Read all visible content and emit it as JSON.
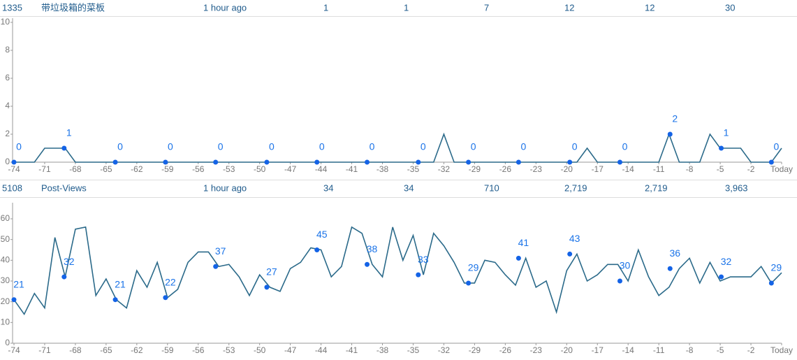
{
  "rows": [
    {
      "id": "1335",
      "name": "带垃圾箱的菜板",
      "updated": "1 hour ago",
      "stats": [
        "1",
        "1",
        "7",
        "12",
        "12",
        "30"
      ]
    },
    {
      "id": "5108",
      "name": "Post-Views",
      "updated": "1 hour ago",
      "stats": [
        "34",
        "34",
        "710",
        "2,719",
        "2,719",
        "3,963"
      ]
    }
  ],
  "chart_data": [
    {
      "type": "line",
      "x": [
        -74,
        -73,
        -72,
        -71,
        -70,
        -69,
        -68,
        -67,
        -66,
        -65,
        -64,
        -63,
        -62,
        -61,
        -60,
        -59,
        -58,
        -57,
        -56,
        -55,
        -54,
        -53,
        -52,
        -51,
        -50,
        -49,
        -48,
        -47,
        -46,
        -45,
        -44,
        -43,
        -42,
        -41,
        -40,
        -39,
        -38,
        -37,
        -36,
        -35,
        -34,
        -33,
        -32,
        -31,
        -30,
        -29,
        -28,
        -27,
        -26,
        -25,
        -24,
        -23,
        -22,
        -21,
        -20,
        -19,
        -18,
        -17,
        -16,
        -15,
        -14,
        -13,
        -12,
        -11,
        -10,
        -9,
        -8,
        -7,
        -6,
        -5,
        -4,
        -3,
        -2,
        -1,
        0,
        1
      ],
      "series": [
        {
          "color": "#2b6a8a",
          "values": [
            0,
            0,
            0,
            1,
            1,
            1,
            0,
            0,
            0,
            0,
            0,
            0,
            0,
            0,
            0,
            0,
            0,
            0,
            0,
            0,
            0,
            0,
            0,
            0,
            0,
            0,
            0,
            0,
            0,
            0,
            0,
            0,
            0,
            0,
            0,
            0,
            0,
            0,
            0,
            0,
            0,
            0,
            2,
            0,
            0,
            0,
            0,
            0,
            0,
            0,
            0,
            0,
            0,
            0,
            0,
            0,
            1,
            0,
            0,
            0,
            0,
            0,
            0,
            0,
            2,
            0,
            0,
            0,
            2,
            1,
            1,
            1,
            0,
            0,
            0,
            1
          ]
        }
      ],
      "markers": {
        "color": "#1463e6",
        "x": [
          -74,
          -69.1,
          -64.1,
          -59.2,
          -54.3,
          -49.3,
          -44.4,
          -39.5,
          -34.5,
          -29.6,
          -24.7,
          -19.7,
          -14.8,
          -9.9,
          -4.9,
          0
        ],
        "values": [
          0,
          1,
          0,
          0,
          0,
          0,
          0,
          0,
          0,
          0,
          0,
          0,
          0,
          2,
          1,
          0
        ]
      },
      "xlim": [
        -74,
        1
      ],
      "xticks": [
        -74,
        -71,
        -68,
        -65,
        -62,
        -59,
        -56,
        -53,
        -50,
        -47,
        -44,
        -41,
        -38,
        -35,
        -32,
        -29,
        -26,
        -23,
        -20,
        -17,
        -14,
        -11,
        -8,
        -5,
        -2,
        {
          "value": 1,
          "label": "Today"
        }
      ],
      "ylim": [
        0,
        10
      ],
      "yticks": [
        0,
        2,
        4,
        6,
        8,
        10
      ]
    },
    {
      "type": "line",
      "x": [
        -74,
        -73,
        -72,
        -71,
        -70,
        -69,
        -68,
        -67,
        -66,
        -65,
        -64,
        -63,
        -62,
        -61,
        -60,
        -59,
        -58,
        -57,
        -56,
        -55,
        -54,
        -53,
        -52,
        -51,
        -50,
        -49,
        -48,
        -47,
        -46,
        -45,
        -44,
        -43,
        -42,
        -41,
        -40,
        -39,
        -38,
        -37,
        -36,
        -35,
        -34,
        -33,
        -32,
        -31,
        -30,
        -29,
        -28,
        -27,
        -26,
        -25,
        -24,
        -23,
        -22,
        -21,
        -20,
        -19,
        -18,
        -17,
        -16,
        -15,
        -14,
        -13,
        -12,
        -11,
        -10,
        -9,
        -8,
        -7,
        -6,
        -5,
        -4,
        -3,
        -2,
        -1,
        0,
        1
      ],
      "series": [
        {
          "color": "#2b6a8a",
          "values": [
            21,
            14,
            24,
            17,
            51,
            32,
            55,
            56,
            23,
            31,
            21,
            17,
            35,
            27,
            39,
            22,
            26,
            39,
            44,
            44,
            37,
            38,
            32,
            23,
            33,
            27,
            25,
            36,
            39,
            46,
            45,
            32,
            37,
            56,
            53,
            38,
            32,
            56,
            40,
            52,
            33,
            53,
            47,
            39,
            29,
            29,
            40,
            39,
            33,
            28,
            41,
            27,
            30,
            15,
            35,
            43,
            30,
            33,
            38,
            38,
            30,
            45,
            32,
            23,
            27,
            36,
            41,
            29,
            39,
            30,
            32,
            32,
            32,
            37,
            29,
            34
          ]
        }
      ],
      "markers": {
        "color": "#1463e6",
        "x": [
          -74,
          -69.1,
          -64.1,
          -59.2,
          -54.3,
          -49.3,
          -44.4,
          -39.5,
          -34.5,
          -29.6,
          -24.7,
          -19.7,
          -14.8,
          -9.9,
          -4.9,
          0
        ],
        "values": [
          21,
          32,
          21,
          22,
          37,
          27,
          45,
          38,
          33,
          29,
          41,
          43,
          30,
          36,
          32,
          29
        ]
      },
      "xlim": [
        -74,
        1
      ],
      "xticks": [
        -74,
        -71,
        -68,
        -65,
        -62,
        -59,
        -56,
        -53,
        -50,
        -47,
        -44,
        -41,
        -38,
        -35,
        -32,
        -29,
        -26,
        -23,
        -20,
        -17,
        -14,
        -11,
        -8,
        -5,
        -2,
        {
          "value": 1,
          "label": "Today"
        }
      ],
      "ylim": [
        0,
        60
      ],
      "yticks": [
        0,
        10,
        20,
        30,
        40,
        50,
        60
      ]
    }
  ]
}
